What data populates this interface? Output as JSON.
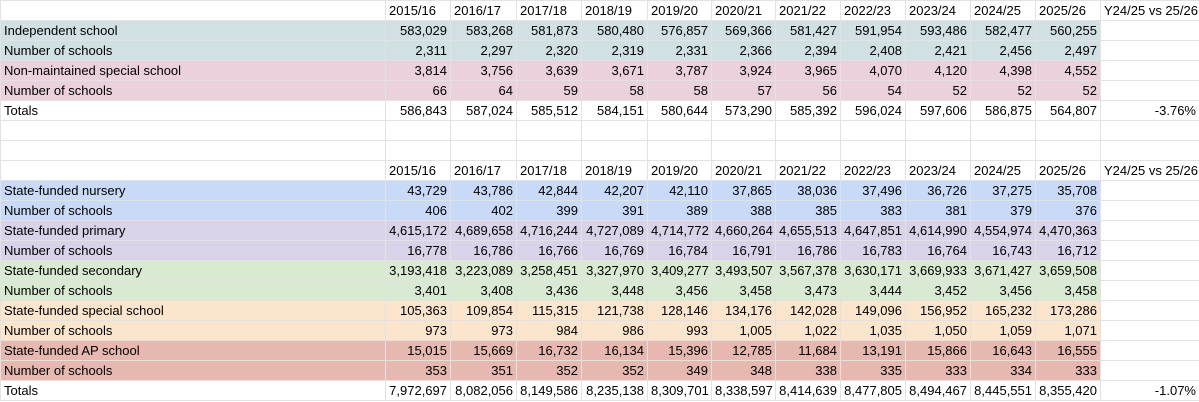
{
  "table1": {
    "header": [
      "2015/16",
      "2016/17",
      "2017/18",
      "2018/19",
      "2019/20",
      "2020/21",
      "2021/22",
      "2022/23",
      "2023/24",
      "2024/25",
      "2025/26",
      "Y24/25 vs 25/26"
    ],
    "rows": [
      {
        "label": "Independent school",
        "values": [
          "583,029",
          "583,268",
          "581,873",
          "580,480",
          "576,857",
          "569,366",
          "581,427",
          "591,954",
          "593,486",
          "582,477",
          "560,255"
        ]
      },
      {
        "label": "Number of schools",
        "values": [
          "2,311",
          "2,297",
          "2,320",
          "2,319",
          "2,331",
          "2,366",
          "2,394",
          "2,408",
          "2,421",
          "2,456",
          "2,497"
        ]
      },
      {
        "label": "Non-maintained special school",
        "values": [
          "3,814",
          "3,756",
          "3,639",
          "3,671",
          "3,787",
          "3,924",
          "3,965",
          "4,070",
          "4,120",
          "4,398",
          "4,552"
        ]
      },
      {
        "label": "Number of schools",
        "values": [
          "66",
          "64",
          "59",
          "58",
          "58",
          "57",
          "56",
          "54",
          "52",
          "52",
          "52"
        ]
      },
      {
        "label": "Totals",
        "values": [
          "586,843",
          "587,024",
          "585,512",
          "584,151",
          "580,644",
          "573,290",
          "585,392",
          "596,024",
          "597,606",
          "586,875",
          "564,807"
        ],
        "change": "-3.76%"
      }
    ]
  },
  "table2": {
    "header": [
      "2015/16",
      "2016/17",
      "2017/18",
      "2018/19",
      "2019/20",
      "2020/21",
      "2021/22",
      "2022/23",
      "2023/24",
      "2024/25",
      "2025/26",
      "Y24/25 vs 25/26"
    ],
    "rows": [
      {
        "label": "State-funded nursery",
        "values": [
          "43,729",
          "43,786",
          "42,844",
          "42,207",
          "42,110",
          "37,865",
          "38,036",
          "37,496",
          "36,726",
          "37,275",
          "35,708"
        ]
      },
      {
        "label": "Number of schools",
        "values": [
          "406",
          "402",
          "399",
          "391",
          "389",
          "388",
          "385",
          "383",
          "381",
          "379",
          "376"
        ]
      },
      {
        "label": "State-funded primary",
        "values": [
          "4,615,172",
          "4,689,658",
          "4,716,244",
          "4,727,089",
          "4,714,772",
          "4,660,264",
          "4,655,513",
          "4,647,851",
          "4,614,990",
          "4,554,974",
          "4,470,363"
        ]
      },
      {
        "label": "Number of schools",
        "values": [
          "16,778",
          "16,786",
          "16,766",
          "16,769",
          "16,784",
          "16,791",
          "16,786",
          "16,783",
          "16,764",
          "16,743",
          "16,712"
        ]
      },
      {
        "label": "State-funded secondary",
        "values": [
          "3,193,418",
          "3,223,089",
          "3,258,451",
          "3,327,970",
          "3,409,277",
          "3,493,507",
          "3,567,378",
          "3,630,171",
          "3,669,933",
          "3,671,427",
          "3,659,508"
        ]
      },
      {
        "label": "Number of schools",
        "values": [
          "3,401",
          "3,408",
          "3,436",
          "3,448",
          "3,456",
          "3,458",
          "3,473",
          "3,444",
          "3,452",
          "3,456",
          "3,458"
        ]
      },
      {
        "label": "State-funded special school",
        "values": [
          "105,363",
          "109,854",
          "115,315",
          "121,738",
          "128,146",
          "134,176",
          "142,028",
          "149,096",
          "156,952",
          "165,232",
          "173,286"
        ]
      },
      {
        "label": "Number of schools",
        "values": [
          "973",
          "973",
          "984",
          "986",
          "993",
          "1,005",
          "1,022",
          "1,035",
          "1,050",
          "1,059",
          "1,071"
        ]
      },
      {
        "label": "State-funded AP school",
        "values": [
          "15,015",
          "15,669",
          "16,732",
          "16,134",
          "15,396",
          "12,785",
          "11,684",
          "13,191",
          "15,866",
          "16,643",
          "16,555"
        ]
      },
      {
        "label": "Number of schools",
        "values": [
          "353",
          "351",
          "352",
          "352",
          "349",
          "348",
          "338",
          "335",
          "333",
          "334",
          "333"
        ]
      },
      {
        "label": "Totals",
        "values": [
          "7,972,697",
          "8,082,056",
          "8,149,586",
          "8,235,138",
          "8,309,701",
          "8,338,597",
          "8,414,639",
          "8,477,805",
          "8,494,467",
          "8,445,551",
          "8,355,420"
        ],
        "change": "-1.07%"
      }
    ]
  }
}
